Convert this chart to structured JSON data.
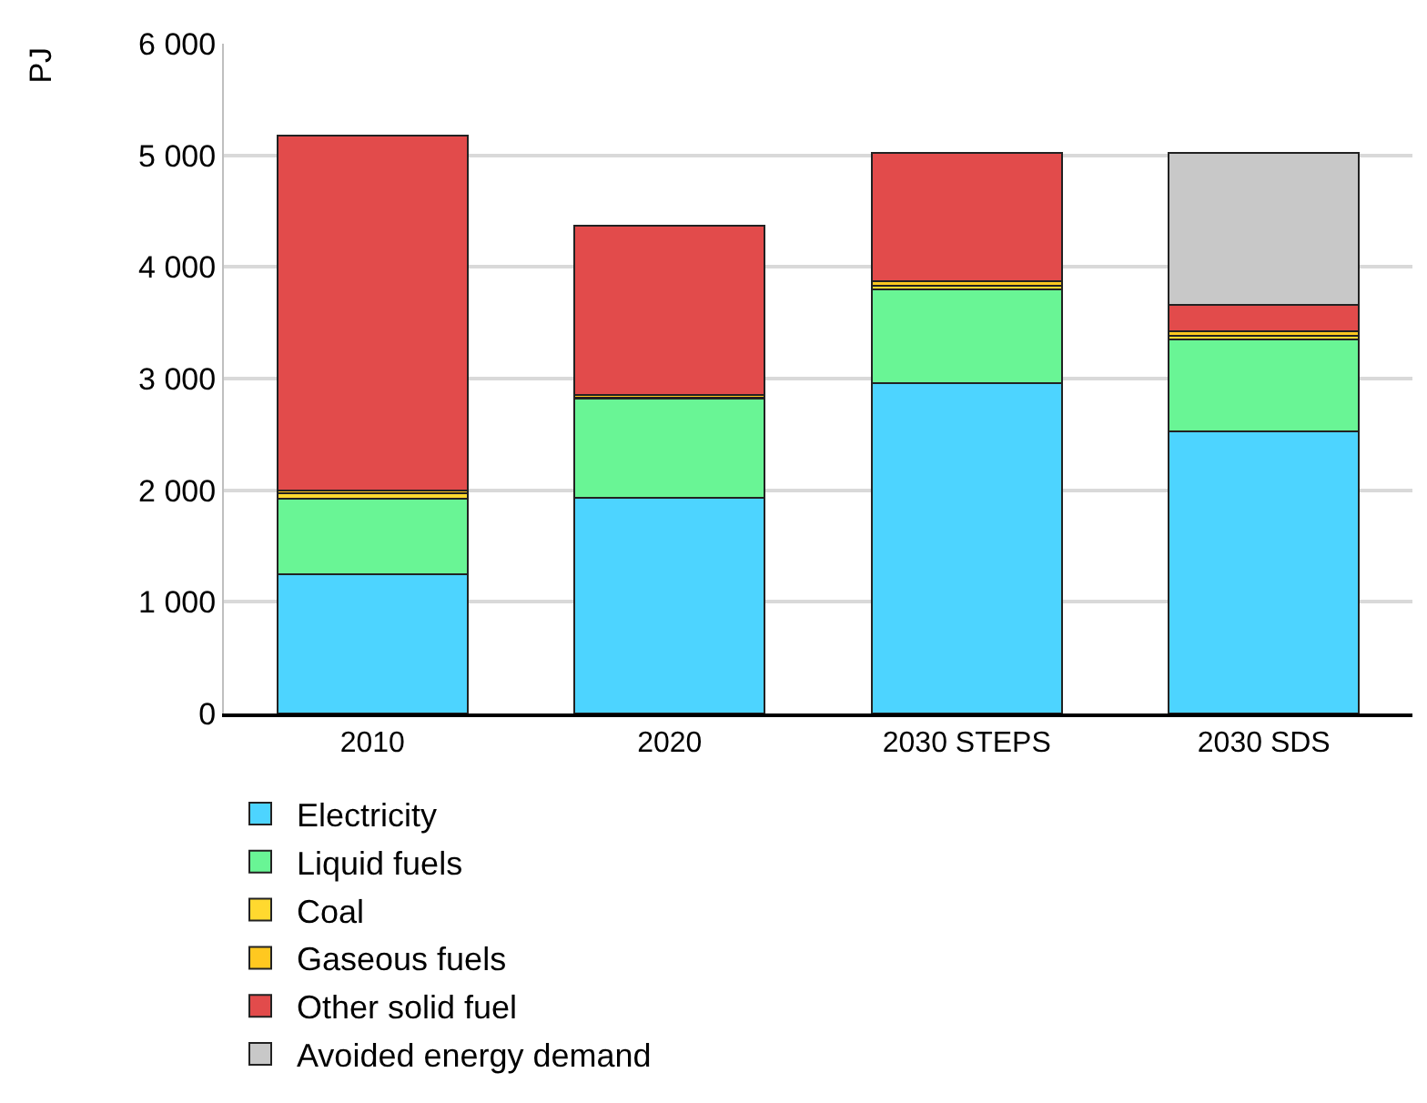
{
  "chart_data": {
    "type": "bar",
    "stacked": true,
    "ylabel": "PJ",
    "categories": [
      "2010",
      "2020",
      "2030 STEPS",
      "2030 SDS"
    ],
    "series": [
      {
        "name": "Electricity",
        "color": "#4dd4ff",
        "values": [
          1250,
          1930,
          2960,
          2530
        ]
      },
      {
        "name": "Liquid fuels",
        "color": "#69f595",
        "values": [
          670,
          890,
          840,
          820
        ]
      },
      {
        "name": "Coal",
        "color": "#ffd92f",
        "values": [
          50,
          10,
          30,
          30
        ]
      },
      {
        "name": "Gaseous fuels",
        "color": "#ffc820",
        "values": [
          30,
          20,
          40,
          40
        ]
      },
      {
        "name": "Other solid fuel",
        "color": "#e24b4b",
        "values": [
          3180,
          1520,
          1150,
          240
        ]
      },
      {
        "name": "Avoided energy demand",
        "color": "#c8c8c8",
        "values": [
          null,
          null,
          null,
          1360
        ]
      }
    ],
    "ylim": [
      0,
      6000
    ],
    "yticks": [
      0,
      {
        "value": 1000,
        "label": "1 000"
      },
      {
        "value": 2000,
        "label": "2 000"
      },
      {
        "value": 3000,
        "label": "3 000"
      },
      {
        "value": 4000,
        "label": "4 000"
      },
      {
        "value": 5000,
        "label": "5 000"
      },
      {
        "value": 6000,
        "label": "6 000"
      }
    ],
    "grid": "y",
    "legend": "bottom"
  }
}
